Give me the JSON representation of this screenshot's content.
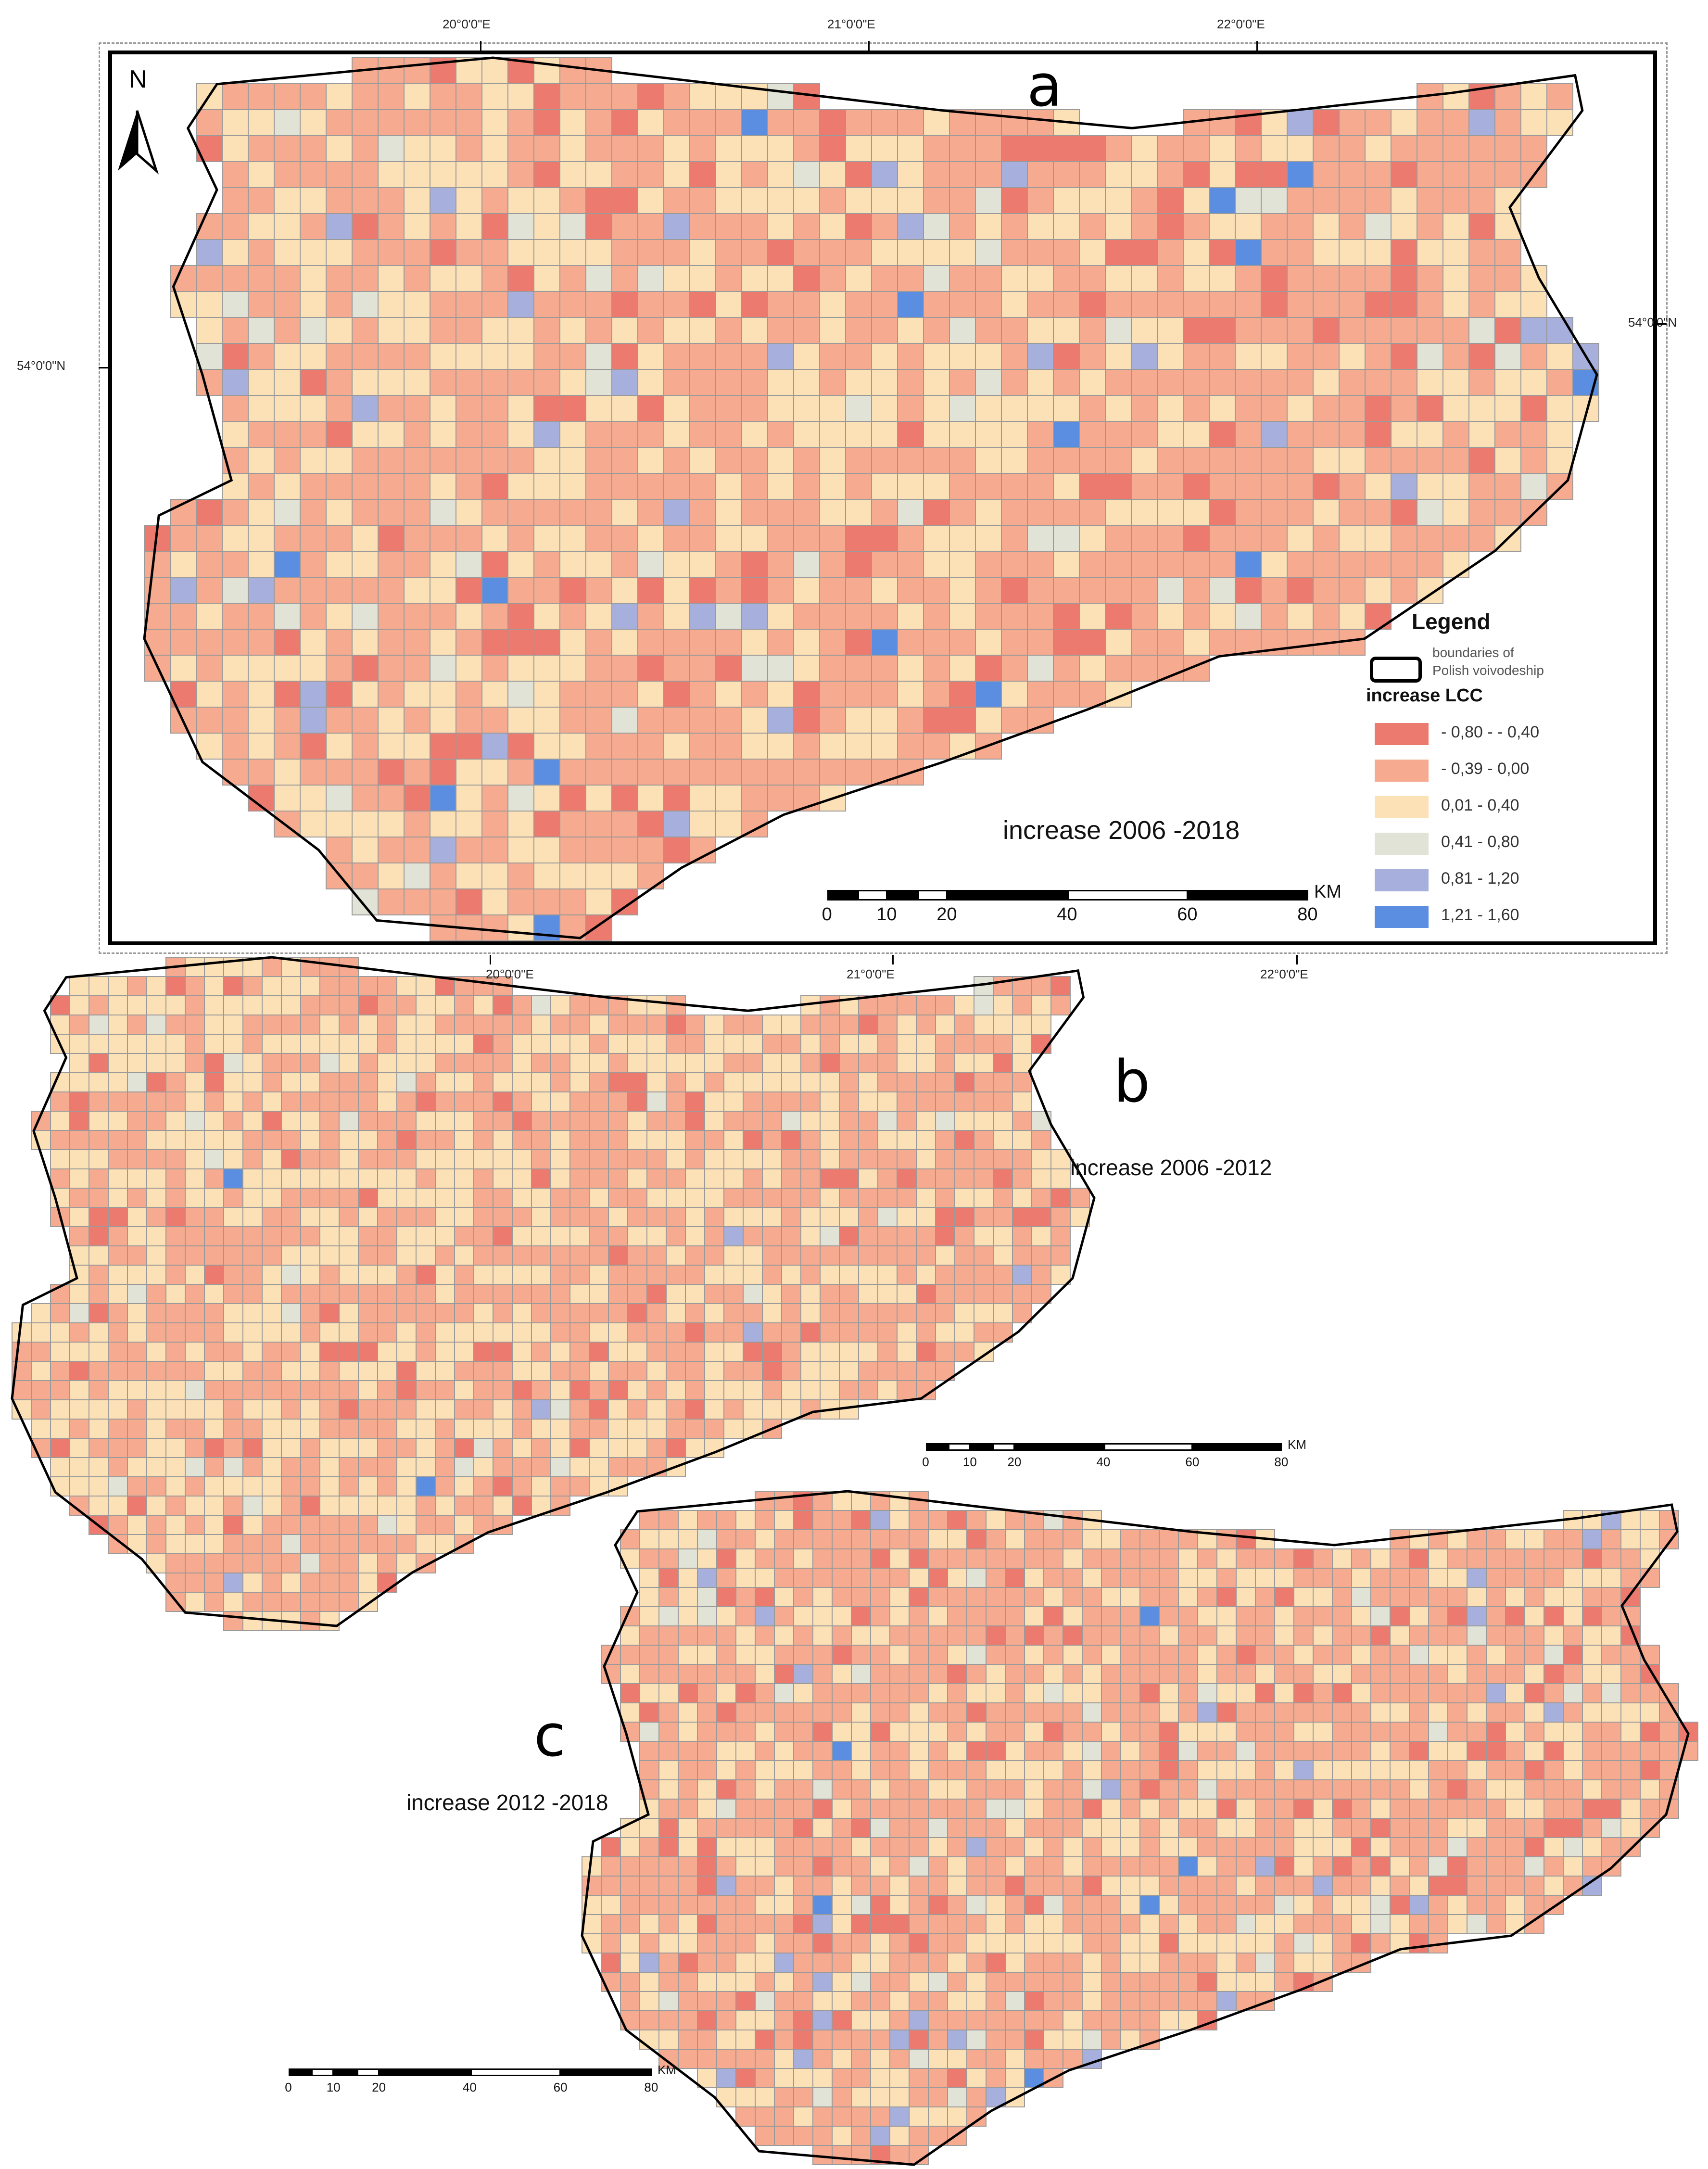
{
  "panels": {
    "a": {
      "letter": "a",
      "caption": "increase 2006 -2018"
    },
    "b": {
      "letter": "b",
      "caption": "increase 2006 -2012"
    },
    "c": {
      "letter": "c",
      "caption": "increase 2012 -2018"
    }
  },
  "coordinates": {
    "top_lon": [
      "20°0'0\"E",
      "21°0'0\"E",
      "22°0'0\"E"
    ],
    "bottom_lon": [
      "20°0'0\"E",
      "21°0'0\"E",
      "22°0'0\"E"
    ],
    "lat_left": "54°0'0\"N",
    "lat_right": "54°0'0\"N"
  },
  "north_arrow": {
    "label": "N",
    "icon": "north-arrow-icon"
  },
  "legend": {
    "title": "Legend",
    "boundary_label_line1": "boundaries of",
    "boundary_label_line2": "Polish voivodeship",
    "class_title": "increase LCC",
    "classes": [
      {
        "label": "- 0,80 - - 0,40",
        "color": "#ec7a6f"
      },
      {
        "label": "- 0,39 -  0,00",
        "color": "#f6aa90"
      },
      {
        "label": "0,01 -  0,40",
        "color": "#fde1b6"
      },
      {
        "label": "0,41 -  0,80",
        "color": "#e1e3d6"
      },
      {
        "label": "0,81 -  1,20",
        "color": "#a7b0dc"
      },
      {
        "label": "1,21 -  1,60",
        "color": "#5b8de0"
      }
    ]
  },
  "scale_bar": {
    "unit": "KM",
    "ticks": [
      "0",
      "10",
      "20",
      "40",
      "60",
      "80"
    ]
  },
  "colors": {
    "grid_line": "#9a9a9a",
    "border": "#000000"
  }
}
